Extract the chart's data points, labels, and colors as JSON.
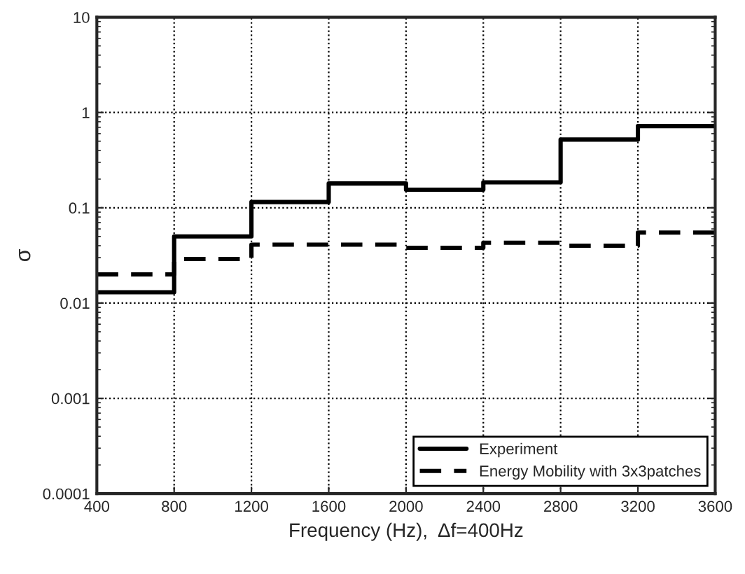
{
  "chart_data": {
    "type": "step",
    "xlabel": "Frequency (Hz),  Δf=400Hz",
    "ylabel": "σ",
    "x": [
      400,
      800,
      1200,
      1600,
      2000,
      2400,
      2800,
      3200,
      3600
    ],
    "series": [
      {
        "name": "Experiment",
        "color": "#000000",
        "line_style": "solid",
        "values": [
          0.013,
          0.05,
          0.115,
          0.18,
          0.155,
          0.185,
          0.52,
          0.72,
          0.72
        ]
      },
      {
        "name": "Energy Mobility with 3x3patches",
        "color": "#000000",
        "line_style": "dashed",
        "values": [
          0.02,
          0.029,
          0.041,
          0.041,
          0.038,
          0.043,
          0.04,
          0.055,
          0.055
        ]
      }
    ],
    "log": "y",
    "xlim": [
      400,
      3600
    ],
    "ylim": [
      0.0001,
      10
    ],
    "xticks": [
      400,
      800,
      1200,
      1600,
      2000,
      2400,
      2800,
      3200,
      3600
    ],
    "yticks": [
      0.0001,
      0.001,
      0.01,
      0.1,
      1,
      10
    ],
    "grid": true,
    "legend": "bottom right"
  }
}
